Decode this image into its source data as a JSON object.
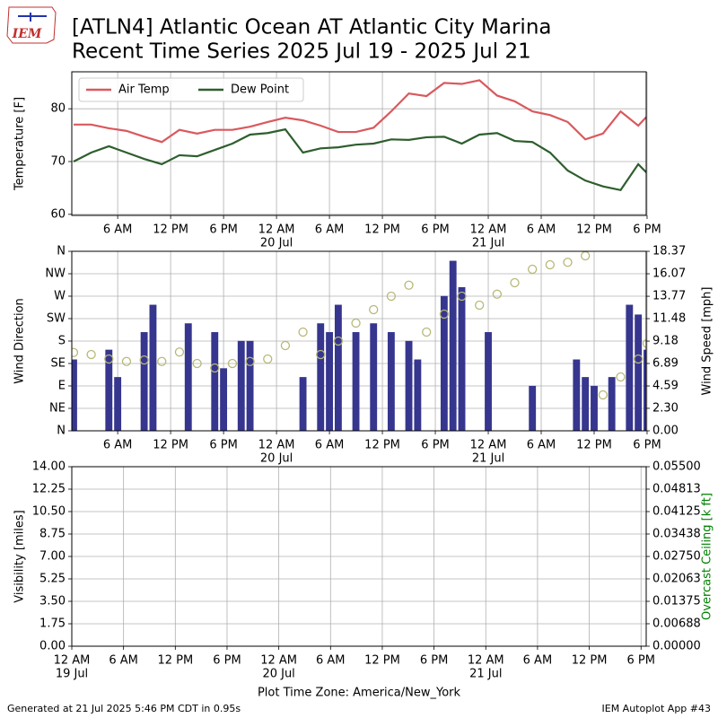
{
  "header": {
    "logo_text": "IEM",
    "title": "[ATLN4] Atlantic Ocean  AT Atlantic City Marina",
    "subtitle": "Recent Time Series 2025 Jul 19 - 2025 Jul 21"
  },
  "footer": {
    "generated": "Generated at 21 Jul 2025 5:46 PM CDT in 0.95s",
    "app": "IEM Autoplot App #43"
  },
  "chart_data": [
    {
      "type": "line",
      "ylabel": "Temperature [F]",
      "grid": true,
      "legend": "upper left",
      "xlim": [
        0.8,
        65.9
      ],
      "ylim": [
        59.8,
        87
      ],
      "yticks": [
        60,
        70,
        80
      ],
      "xticks": [
        {
          "value": 6,
          "label": "6 AM"
        },
        {
          "value": 12,
          "label": "12 PM"
        },
        {
          "value": 18,
          "label": "6 PM"
        },
        {
          "value": 24,
          "label": "12 AM"
        },
        {
          "value": 30,
          "label": "6 AM"
        },
        {
          "value": 36,
          "label": "12 PM"
        },
        {
          "value": 42,
          "label": "6 PM"
        },
        {
          "value": 48,
          "label": "12 AM"
        },
        {
          "value": 54,
          "label": "6 AM"
        },
        {
          "value": 60,
          "label": "12 PM"
        },
        {
          "value": 66,
          "label": "6 PM"
        }
      ],
      "xtick_dates": [
        {
          "value": 24,
          "label": "20 Jul"
        },
        {
          "value": 48,
          "label": "21 Jul"
        }
      ],
      "x": [
        1,
        3,
        5,
        7,
        9,
        11,
        13,
        15,
        17,
        19,
        21,
        23,
        25,
        27,
        29,
        31,
        33,
        35,
        37,
        39,
        41,
        43,
        45,
        47,
        49,
        51,
        53,
        55,
        57,
        59,
        61,
        63,
        65,
        66
      ],
      "series": [
        {
          "name": "Air Temp",
          "color": "#d9595e",
          "values": [
            77,
            77,
            76.3,
            75.8,
            74.7,
            73.7,
            76,
            75.3,
            76,
            76,
            76.6,
            77.5,
            78.3,
            77.8,
            76.8,
            75.6,
            75.6,
            76.4,
            79.5,
            82.9,
            82.4,
            84.9,
            84.7,
            85.4,
            82.5,
            81.4,
            79.5,
            78.8,
            77.5,
            74.2,
            75.3,
            79.5,
            76.8,
            78.6
          ]
        },
        {
          "name": "Dew Point",
          "color": "#2e5e2e",
          "values": [
            70,
            71.7,
            72.9,
            71.7,
            70.5,
            69.5,
            71.2,
            71,
            72.2,
            73.4,
            75.1,
            75.4,
            76.1,
            71.7,
            72.5,
            72.7,
            73.2,
            73.4,
            74.2,
            74.1,
            74.6,
            74.7,
            73.4,
            75.1,
            75.4,
            73.9,
            73.7,
            71.7,
            68.3,
            66.4,
            65.3,
            64.6,
            69.5,
            67.8
          ]
        }
      ]
    },
    {
      "type": "combo",
      "ylabel": "Wind Direction",
      "y2label": "Wind Speed [mph]",
      "grid": true,
      "xlim": [
        0.8,
        65.9
      ],
      "ylim": [
        0,
        360
      ],
      "y2lim": [
        0,
        18.37
      ],
      "yticks": [
        {
          "value": 0,
          "label": "N"
        },
        {
          "value": 45,
          "label": "NE"
        },
        {
          "value": 90,
          "label": "E"
        },
        {
          "value": 135,
          "label": "SE"
        },
        {
          "value": 180,
          "label": "S"
        },
        {
          "value": 225,
          "label": "SW"
        },
        {
          "value": 270,
          "label": "W"
        },
        {
          "value": 315,
          "label": "NW"
        },
        {
          "value": 360,
          "label": "N"
        }
      ],
      "y2ticks": [
        {
          "value": 0,
          "label": "0.00"
        },
        {
          "value": 2.3,
          "label": "2.30"
        },
        4.59,
        6.89,
        9.18,
        11.48,
        13.77,
        16.07,
        18.37
      ],
      "xticks": [
        {
          "value": 6,
          "label": "6 AM"
        },
        {
          "value": 12,
          "label": "12 PM"
        },
        {
          "value": 18,
          "label": "6 PM"
        },
        {
          "value": 24,
          "label": "12 AM"
        },
        {
          "value": 30,
          "label": "6 AM"
        },
        {
          "value": 36,
          "label": "12 PM"
        },
        {
          "value": 42,
          "label": "6 PM"
        },
        {
          "value": 48,
          "label": "12 AM"
        },
        {
          "value": 54,
          "label": "6 AM"
        },
        {
          "value": 60,
          "label": "12 PM"
        },
        {
          "value": 66,
          "label": "6 PM"
        }
      ],
      "xtick_dates": [
        {
          "value": 24,
          "label": "20 Jul"
        },
        {
          "value": 48,
          "label": "21 Jul"
        }
      ],
      "x": [
        1,
        3,
        5,
        7,
        9,
        11,
        13,
        15,
        17,
        19,
        21,
        23,
        25,
        27,
        29,
        31,
        33,
        35,
        37,
        39,
        41,
        43,
        45,
        47,
        49,
        51,
        53,
        55,
        57,
        59,
        61,
        63,
        65,
        66
      ],
      "series": [
        {
          "type": "bar",
          "axis": "y2",
          "color": "#36368f",
          "x": [
            1,
            5,
            6,
            9,
            10,
            14,
            17,
            18,
            20,
            21,
            27,
            29,
            30,
            31,
            33,
            35,
            37,
            39,
            40,
            43,
            44,
            45,
            48,
            53,
            58,
            59,
            60,
            62,
            64,
            65,
            66
          ],
          "values": [
            7.3,
            8.3,
            5.5,
            10.1,
            12.9,
            11,
            10.1,
            6.4,
            9.2,
            9.2,
            5.5,
            11,
            10.1,
            12.9,
            10.1,
            11,
            10.1,
            9.2,
            7.3,
            13.8,
            17.4,
            14.7,
            10.1,
            4.6,
            7.3,
            5.5,
            4.6,
            5.5,
            12.9,
            11.9,
            8.3
          ]
        },
        {
          "type": "scatter",
          "color": "#b8b878",
          "values": [
            157,
            153,
            144,
            139,
            142,
            139,
            158,
            135,
            126,
            135,
            139,
            144,
            171,
            198,
            153,
            180,
            216,
            243,
            270,
            292,
            198,
            234,
            270,
            252,
            274,
            297,
            324,
            333,
            338,
            351,
            72,
            108,
            144,
            175
          ]
        }
      ]
    },
    {
      "type": "line",
      "ylabel": "Visibility [miles]",
      "y2label": "Overcast Ceiling [k ft]",
      "y2label_color": "#008000",
      "grid": true,
      "xlabel": "Plot Time Zone: America/New_York",
      "xlim": [
        0,
        66.6
      ],
      "ylim": [
        0,
        14
      ],
      "y2lim": [
        0,
        0.055
      ],
      "yticks": [
        {
          "value": 0,
          "label": "0.00"
        },
        1.75,
        {
          "value": 3.5,
          "label": "3.50"
        },
        5.25,
        {
          "value": 7,
          "label": "7.00"
        },
        8.75,
        {
          "value": 10.5,
          "label": "10.50"
        },
        12.25,
        {
          "value": 14,
          "label": "14.00"
        }
      ],
      "y2ticks": [
        {
          "value": 0,
          "label": "0.00000"
        },
        0.00688,
        0.01375,
        0.02063,
        {
          "value": 0.0275,
          "label": "0.02750"
        },
        0.03438,
        0.04125,
        0.04813,
        {
          "value": 0.055,
          "label": "0.05500"
        }
      ],
      "xticks": [
        {
          "value": 0,
          "label": "12 AM"
        },
        {
          "value": 6,
          "label": "6 AM"
        },
        {
          "value": 12,
          "label": "12 PM"
        },
        {
          "value": 18,
          "label": "6 PM"
        },
        {
          "value": 24,
          "label": "12 AM"
        },
        {
          "value": 30,
          "label": "6 AM"
        },
        {
          "value": 36,
          "label": "12 PM"
        },
        {
          "value": 42,
          "label": "6 PM"
        },
        {
          "value": 48,
          "label": "12 AM"
        },
        {
          "value": 54,
          "label": "6 AM"
        },
        {
          "value": 60,
          "label": "12 PM"
        },
        {
          "value": 66,
          "label": "6 PM"
        }
      ],
      "xtick_dates": [
        {
          "value": 0,
          "label": "19 Jul"
        },
        {
          "value": 24,
          "label": "20 Jul"
        },
        {
          "value": 48,
          "label": "21 Jul"
        }
      ],
      "series": []
    }
  ]
}
